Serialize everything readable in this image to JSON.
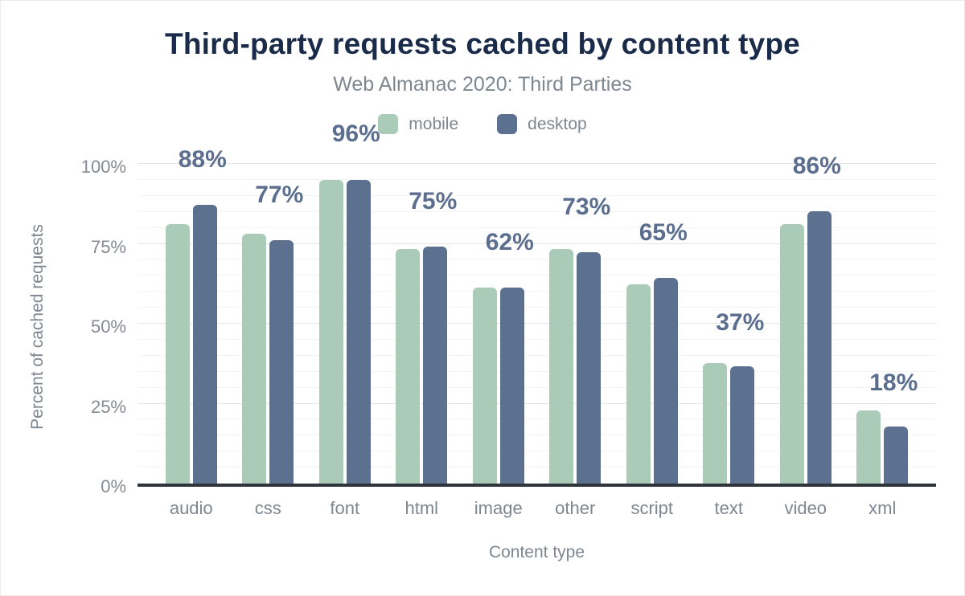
{
  "header": {
    "title": "Third-party requests cached by content type",
    "subtitle": "Web Almanac 2020: Third Parties"
  },
  "axes": {
    "y_title": "Percent of cached requests",
    "x_title": "Content type",
    "y_ticks": [
      {
        "label": "0%",
        "value": 0
      },
      {
        "label": "25%",
        "value": 25
      },
      {
        "label": "50%",
        "value": 50
      },
      {
        "label": "75%",
        "value": 75
      },
      {
        "label": "100%",
        "value": 100
      }
    ]
  },
  "colors": {
    "title": "#1a2b49",
    "subtitle": "#7e8790",
    "axis_text": "#7e868f",
    "value_label": "#5b6e8e",
    "axis_line": "#2f353b",
    "grid_major": "#e2e4e6",
    "grid_minor": "#f4f4f5",
    "mobile": "#a9cbb7",
    "desktop": "#5c7090"
  },
  "chart_data": {
    "type": "bar",
    "title": "Third-party requests cached by content type",
    "subtitle": "Web Almanac 2020: Third Parties",
    "xlabel": "Content type",
    "ylabel": "Percent of cached requests",
    "ylim": [
      0,
      100
    ],
    "grid": {
      "minor_step": 5,
      "major_step": 25,
      "on": true
    },
    "legend_position": "top",
    "categories": [
      "audio",
      "css",
      "font",
      "html",
      "image",
      "other",
      "script",
      "text",
      "video",
      "xml"
    ],
    "series": [
      {
        "name": "mobile",
        "color": "#a9cbb7",
        "values": [
          82,
          79,
          96,
          74,
          62,
          74,
          63,
          38,
          82,
          23
        ]
      },
      {
        "name": "desktop",
        "color": "#5c7090",
        "values": [
          88,
          77,
          96,
          75,
          62,
          73,
          65,
          37,
          86,
          18
        ]
      }
    ],
    "value_labels": [
      "88%",
      "77%",
      "96%",
      "75%",
      "62%",
      "73%",
      "65%",
      "37%",
      "86%",
      "18%"
    ],
    "value_labels_series": "desktop"
  }
}
